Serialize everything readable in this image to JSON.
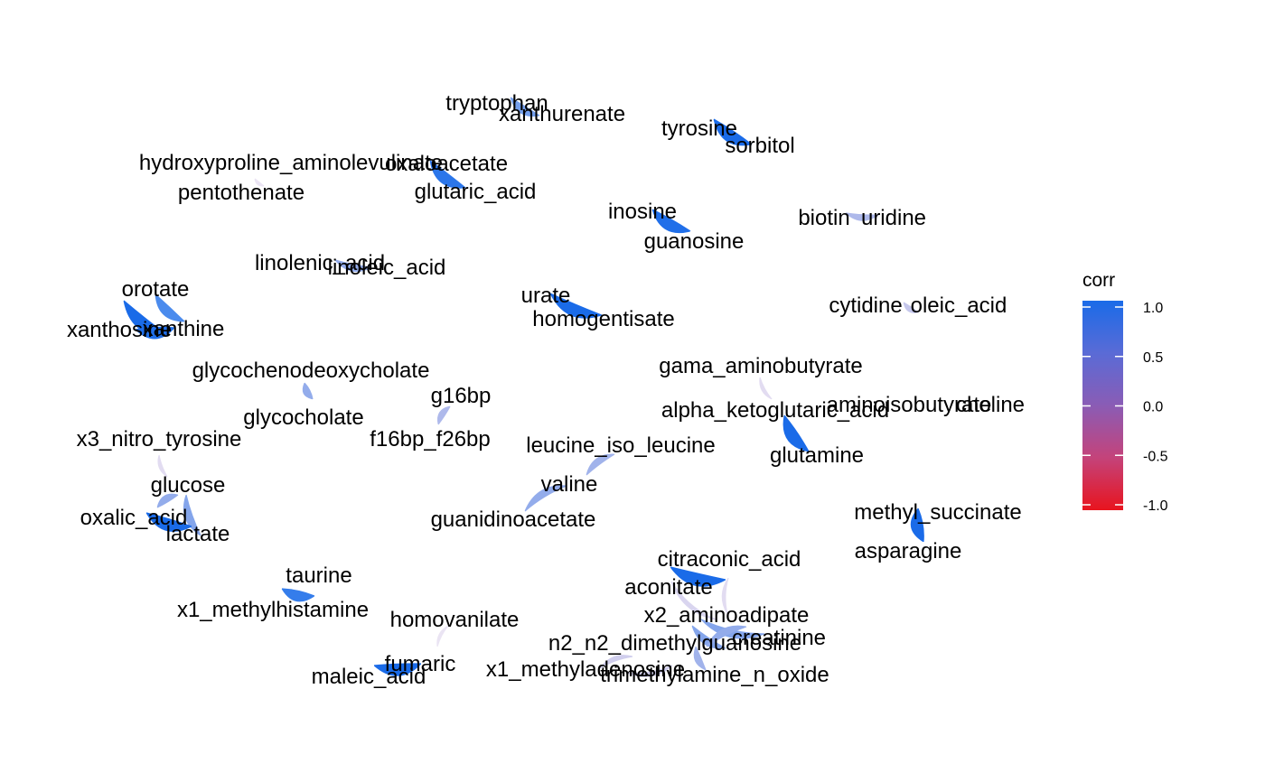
{
  "edge_style": "correlation-weighted",
  "legend": {
    "title": "corr",
    "ticks": [
      {
        "value": 1.0,
        "label": "1.0"
      },
      {
        "value": 0.5,
        "label": "0.5"
      },
      {
        "value": 0.0,
        "label": "0.0"
      },
      {
        "value": -0.5,
        "label": "-0.5"
      },
      {
        "value": -1.0,
        "label": "-1.0"
      }
    ],
    "colors": {
      "high": "#1a6be8",
      "mid": "#8a5cb5",
      "low": "#e8141e",
      "weak": "#ffffff"
    }
  },
  "nodes": [
    {
      "id": "tryptophan",
      "label": "tryptophan"
    },
    {
      "id": "xanthurenate",
      "label": "xanthurenate"
    },
    {
      "id": "tyrosine",
      "label": "tyrosine"
    },
    {
      "id": "sorbitol",
      "label": "sorbitol"
    },
    {
      "id": "hydroxyproline_aminolevulinate",
      "label": "hydroxyproline_aminolevulinate"
    },
    {
      "id": "oxaloacetate",
      "label": "oxaloacetate"
    },
    {
      "id": "pentothenate",
      "label": "pentothenate"
    },
    {
      "id": "glutaric_acid",
      "label": "glutaric_acid"
    },
    {
      "id": "inosine",
      "label": "inosine"
    },
    {
      "id": "guanosine",
      "label": "guanosine"
    },
    {
      "id": "biotin",
      "label": "biotin"
    },
    {
      "id": "uridine",
      "label": "uridine"
    },
    {
      "id": "linolenic_acid",
      "label": "linolenic_acid"
    },
    {
      "id": "linoleic_acid",
      "label": "linoleic_acid"
    },
    {
      "id": "orotate",
      "label": "orotate"
    },
    {
      "id": "xanthosine",
      "label": "xanthosine"
    },
    {
      "id": "xanthine",
      "label": "xanthine"
    },
    {
      "id": "urate",
      "label": "urate"
    },
    {
      "id": "homogentisate",
      "label": "homogentisate"
    },
    {
      "id": "cytidine",
      "label": "cytidine"
    },
    {
      "id": "oleic_acid",
      "label": "oleic_acid"
    },
    {
      "id": "glycochenodeoxycholate",
      "label": "glycochenodeoxycholate"
    },
    {
      "id": "glycocholate",
      "label": "glycocholate"
    },
    {
      "id": "g16bp",
      "label": "g16bp"
    },
    {
      "id": "f16bp_f26bp",
      "label": "f16bp_f26bp"
    },
    {
      "id": "gama_aminobutyrate",
      "label": "gama_aminobutyrate"
    },
    {
      "id": "aminoisobutyrate",
      "label": "aminoisobutyrate"
    },
    {
      "id": "choline",
      "label": "choline"
    },
    {
      "id": "alpha_ketoglutaric_acid",
      "label": "alpha_ketoglutaric_acid"
    },
    {
      "id": "glutamine",
      "label": "glutamine"
    },
    {
      "id": "x3_nitro_tyrosine",
      "label": "x3_nitro_tyrosine"
    },
    {
      "id": "leucine_iso_leucine",
      "label": "leucine_iso_leucine"
    },
    {
      "id": "valine",
      "label": "valine"
    },
    {
      "id": "guanidinoacetate",
      "label": "guanidinoacetate"
    },
    {
      "id": "glucose",
      "label": "glucose"
    },
    {
      "id": "oxalic_acid",
      "label": "oxalic_acid"
    },
    {
      "id": "lactate",
      "label": "lactate"
    },
    {
      "id": "methyl_succinate",
      "label": "methyl_succinate"
    },
    {
      "id": "asparagine",
      "label": "asparagine"
    },
    {
      "id": "citraconic_acid",
      "label": "citraconic_acid"
    },
    {
      "id": "aconitate",
      "label": "aconitate"
    },
    {
      "id": "taurine",
      "label": "taurine"
    },
    {
      "id": "x1_methylhistamine",
      "label": "x1_methylhistamine"
    },
    {
      "id": "homovanilate",
      "label": "homovanilate"
    },
    {
      "id": "x2_aminoadipate",
      "label": "x2_aminoadipate"
    },
    {
      "id": "creatinine",
      "label": "creatinine"
    },
    {
      "id": "n2_n2_dimethylguanosine",
      "label": "n2_n2_dimethylguanosine"
    },
    {
      "id": "fumaric",
      "label": "fumaric"
    },
    {
      "id": "x1_methyladenosine",
      "label": "x1_methyladenosine"
    },
    {
      "id": "maleic_acid",
      "label": "maleic_acid"
    },
    {
      "id": "trimethylamine_n_oxide",
      "label": "trimethylamine_n_oxide"
    }
  ],
  "edges": [
    {
      "source": "tryptophan",
      "target": "xanthurenate",
      "corr": 0.55
    },
    {
      "source": "tyrosine",
      "target": "sorbitol",
      "corr": 0.95
    },
    {
      "source": "oxaloacetate",
      "target": "glutaric_acid",
      "corr": 0.85
    },
    {
      "source": "hydroxyproline_aminolevulinate",
      "target": "pentothenate",
      "corr": 0.05
    },
    {
      "source": "inosine",
      "target": "guanosine",
      "corr": 0.9
    },
    {
      "source": "biotin",
      "target": "uridine",
      "corr": 0.35
    },
    {
      "source": "linolenic_acid",
      "target": "linoleic_acid",
      "corr": 0.45
    },
    {
      "source": "orotate",
      "target": "xanthosine",
      "corr": 0.95
    },
    {
      "source": "orotate",
      "target": "xanthine",
      "corr": 0.7
    },
    {
      "source": "xanthosine",
      "target": "xanthine",
      "corr": 0.9
    },
    {
      "source": "urate",
      "target": "homogentisate",
      "corr": 0.95
    },
    {
      "source": "cytidine",
      "target": "oleic_acid",
      "corr": 0.25
    },
    {
      "source": "glycochenodeoxycholate",
      "target": "glycocholate",
      "corr": 0.45
    },
    {
      "source": "g16bp",
      "target": "f16bp_f26bp",
      "corr": 0.35
    },
    {
      "source": "gama_aminobutyrate",
      "target": "glutamine",
      "corr": 0.1
    },
    {
      "source": "alpha_ketoglutaric_acid",
      "target": "glutamine",
      "corr": 0.95
    },
    {
      "source": "x3_nitro_tyrosine",
      "target": "glucose",
      "corr": 0.1
    },
    {
      "source": "leucine_iso_leucine",
      "target": "valine",
      "corr": 0.4
    },
    {
      "source": "valine",
      "target": "guanidinoacetate",
      "corr": 0.45
    },
    {
      "source": "glucose",
      "target": "oxalic_acid",
      "corr": 0.45
    },
    {
      "source": "glucose",
      "target": "lactate",
      "corr": 0.5
    },
    {
      "source": "oxalic_acid",
      "target": "lactate",
      "corr": 0.95
    },
    {
      "source": "methyl_succinate",
      "target": "asparagine",
      "corr": 0.95
    },
    {
      "source": "citraconic_acid",
      "target": "aconitate",
      "corr": 1.0
    },
    {
      "source": "aconitate",
      "target": "x2_aminoadipate",
      "corr": 0.15
    },
    {
      "source": "citraconic_acid",
      "target": "x2_aminoadipate",
      "corr": 0.1
    },
    {
      "source": "x2_aminoadipate",
      "target": "creatinine",
      "corr": 0.5
    },
    {
      "source": "x2_aminoadipate",
      "target": "n2_n2_dimethylguanosine",
      "corr": 0.5
    },
    {
      "source": "creatinine",
      "target": "n2_n2_dimethylguanosine",
      "corr": 0.45
    },
    {
      "source": "n2_n2_dimethylguanosine",
      "target": "trimethylamine_n_oxide",
      "corr": 0.4
    },
    {
      "source": "n2_n2_dimethylguanosine",
      "target": "x1_methyladenosine",
      "corr": 0.2
    },
    {
      "source": "x1_methyladenosine",
      "target": "trimethylamine_n_oxide",
      "corr": 0.2
    },
    {
      "source": "taurine",
      "target": "x1_methylhistamine",
      "corr": 0.8
    },
    {
      "source": "homovanilate",
      "target": "fumaric",
      "corr": 0.05
    },
    {
      "source": "fumaric",
      "target": "maleic_acid",
      "corr": 0.95
    }
  ]
}
